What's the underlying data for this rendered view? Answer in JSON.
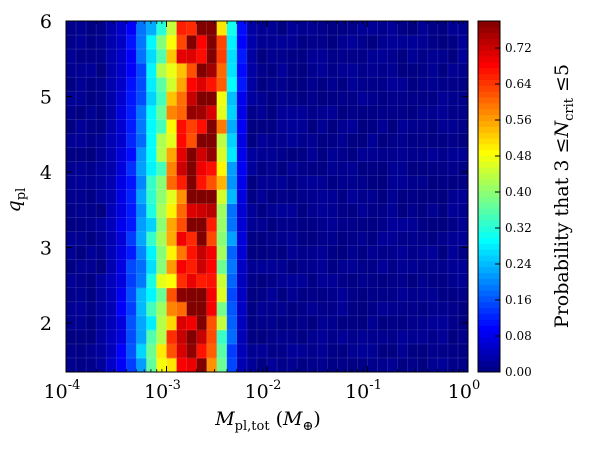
{
  "chart_data": {
    "type": "heatmap",
    "title": "",
    "xlabel": {
      "main": "M",
      "sub": "pl,tot",
      "paren_open": " (",
      "unit": "M",
      "unit_sub": "⊕",
      "paren_close": ")"
    },
    "ylabel": {
      "main": "q",
      "sub": "pl"
    },
    "x_scale": "log",
    "x_range": [
      0.0001,
      1
    ],
    "y_range": [
      1.35,
      6.0
    ],
    "x_ticks": [
      {
        "value": 0.0001,
        "base": "10",
        "exp": "-4"
      },
      {
        "value": 0.001,
        "base": "10",
        "exp": "-3"
      },
      {
        "value": 0.01,
        "base": "10",
        "exp": "-2"
      },
      {
        "value": 0.1,
        "base": "10",
        "exp": "-1"
      },
      {
        "value": 1,
        "base": "10",
        "exp": "0"
      }
    ],
    "y_ticks": [
      {
        "value": 2,
        "label": "2"
      },
      {
        "value": 3,
        "label": "3"
      },
      {
        "value": 4,
        "label": "4"
      },
      {
        "value": 5,
        "label": "5"
      },
      {
        "value": 6,
        "label": "6"
      }
    ],
    "colorbar": {
      "label_parts": {
        "prefix": "Probability that 3 ≤",
        "var": "N",
        "sub": "crit",
        "suffix": " ≤5"
      },
      "range": [
        0,
        0.78
      ],
      "ticks": [
        "0.00",
        "0.08",
        "0.16",
        "0.24",
        "0.32",
        "0.40",
        "0.48",
        "0.56",
        "0.64",
        "0.72"
      ],
      "colormap": "jet"
    },
    "grid": {
      "x_bins": 40,
      "x_min_log": -4,
      "x_max_log": 0,
      "y_bins": 25,
      "peak_probability": 0.78,
      "ridge_center_log_mass": [
        -2.66,
        -2.58
      ],
      "ridge_center_y": [
        1.35,
        6.0
      ]
    },
    "grid_on": true
  }
}
